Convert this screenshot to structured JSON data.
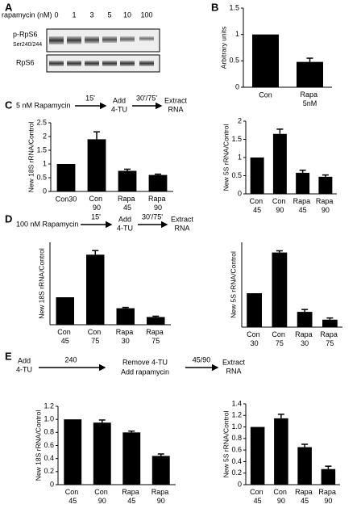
{
  "panel_labels": [
    "A",
    "B",
    "C",
    "D",
    "E"
  ],
  "blot": {
    "treatment_label": "rapamycin (nM)",
    "lanes": [
      "0",
      "1",
      "3",
      "5",
      "10",
      "100"
    ],
    "rows": [
      {
        "label": "p-RpS6",
        "sublabel": "Ser240/244"
      },
      {
        "label": "RpS6"
      }
    ]
  },
  "protocols": {
    "C": [
      "5 nM Rapamycin",
      "15'",
      "Add",
      "4-TU",
      "30'/75'",
      "Extract",
      "RNA"
    ],
    "D": [
      "100 nM Rapamycin",
      "15'",
      "Add",
      "4-TU",
      "30'/75'",
      "Extract",
      "RNA"
    ],
    "E": [
      "Add",
      "4-TU",
      "240",
      "Remove  4-TU",
      "Add rapamycin",
      "45/90",
      "Extract",
      "RNA"
    ]
  },
  "chart_data": [
    {
      "type": "bar",
      "y_label": "Arbitrary units",
      "categories": [
        "Con",
        "Rapa  5nM"
      ],
      "values": [
        1.0,
        0.48
      ],
      "errors": [
        null,
        0.07
      ],
      "color": "#000000",
      "ylim": [
        0,
        1.5
      ],
      "yticks": [
        0,
        0.5,
        1,
        1.5
      ]
    },
    {
      "type": "bar",
      "y_label": "New 18S rRNA/Control",
      "categories": [
        "Con30",
        "Con 90",
        "Rapa 45",
        "Rapa 90"
      ],
      "values": [
        1.0,
        1.9,
        0.75,
        0.6
      ],
      "errors": [
        null,
        0.27,
        0.06,
        0.03
      ],
      "color": "#000000",
      "ylim": [
        0,
        2.5
      ],
      "yticks": [
        0,
        0.5,
        1,
        1.5,
        2,
        2.5
      ]
    },
    {
      "type": "bar",
      "y_label": "New 5S rRNA/Control",
      "categories": [
        "Con 45",
        "Con 90",
        "Rapa 45",
        "Rapa 90"
      ],
      "values": [
        1.0,
        1.65,
        0.58,
        0.47
      ],
      "errors": [
        null,
        0.13,
        0.07,
        0.05
      ],
      "color": "#000000",
      "ylim": [
        0,
        2
      ],
      "yticks": [
        0,
        0.5,
        1,
        1.5,
        2
      ]
    },
    {
      "type": "bar",
      "y_label": "New 18S rRNA/Control",
      "categories": [
        "Con 45",
        "Con 75",
        "Rapa 30",
        "Rapa 75"
      ],
      "values": [
        1.0,
        2.55,
        0.6,
        0.28
      ],
      "errors": [
        null,
        0.15,
        0.03,
        0.03
      ],
      "color": "#000000",
      "ylim": [
        0,
        3
      ],
      "yticks": []
    },
    {
      "type": "bar",
      "y_label": "New 5S rRNA/Control",
      "categories": [
        "Con 30",
        "Con 75",
        "Rapa 30",
        "Rapa 75"
      ],
      "values": [
        1.0,
        2.2,
        0.45,
        0.22
      ],
      "errors": [
        null,
        0.05,
        0.07,
        0.05
      ],
      "color": "#000000",
      "ylim": [
        0,
        2.5
      ],
      "yticks": []
    },
    {
      "type": "bar",
      "y_label": "New 18S rRNA/Control",
      "categories": [
        "Con 45",
        "Con 90",
        "Rapa 45",
        "Rapa 90"
      ],
      "values": [
        1.0,
        0.95,
        0.8,
        0.44
      ],
      "errors": [
        null,
        0.04,
        0.02,
        0.03
      ],
      "color": "#000000",
      "ylim": [
        0,
        1.2
      ],
      "yticks": [
        0,
        0.2,
        0.4,
        0.6,
        0.8,
        {
          "value": 1,
          "label": "1.0"
        },
        1.2
      ]
    },
    {
      "type": "bar",
      "y_label": "New 5S rRNA/Control",
      "categories": [
        "Con 45",
        "Con 90",
        "Rapa 45",
        "Rapa 90"
      ],
      "values": [
        1.0,
        1.15,
        0.65,
        0.27
      ],
      "errors": [
        null,
        0.07,
        0.05,
        0.05
      ],
      "color": "#000000",
      "ylim": [
        0,
        1.4
      ],
      "yticks": [
        0,
        0.2,
        0.4,
        0.6,
        0.8,
        {
          "value": 1,
          "label": "1.0"
        },
        1.2,
        1.4
      ]
    }
  ]
}
